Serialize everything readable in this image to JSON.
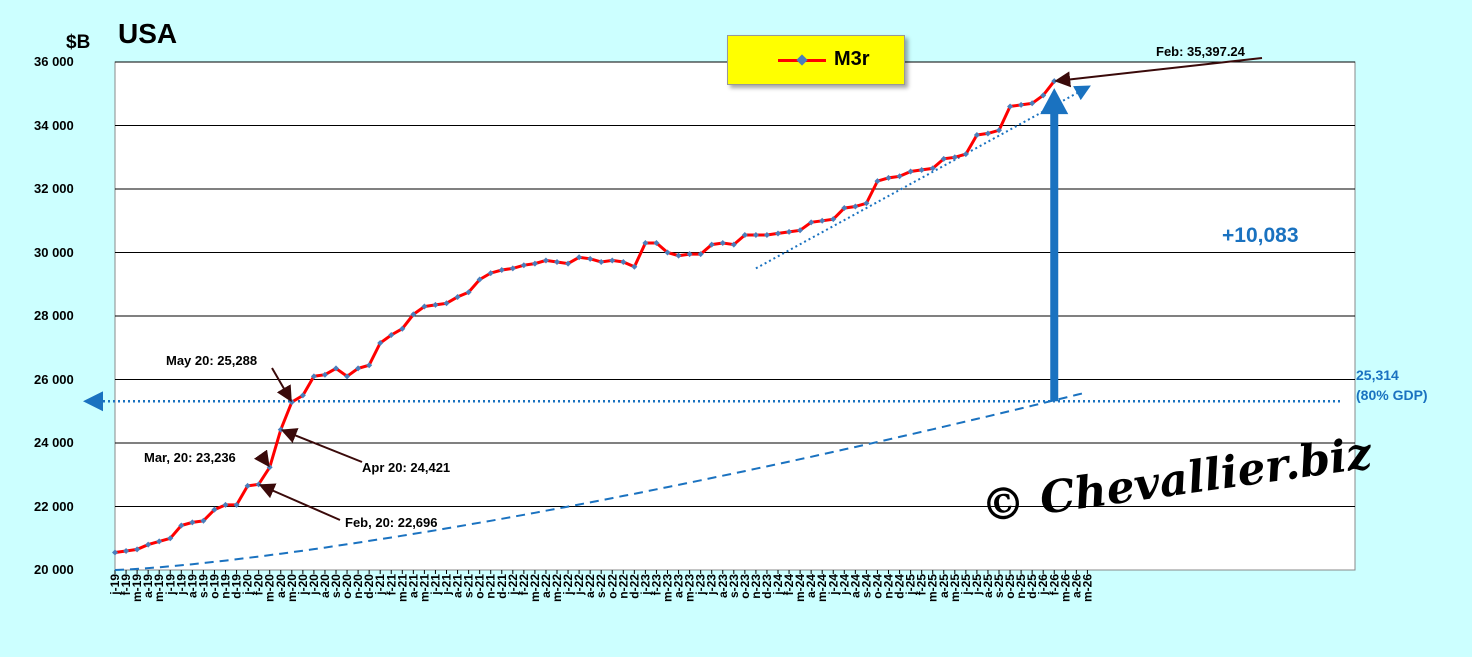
{
  "chart_data": {
    "type": "line",
    "title": "USA",
    "ylabel": "$B",
    "ylim": [
      20000,
      36000
    ],
    "y_ticks": [
      "20 000",
      "22 000",
      "24 000",
      "26 000",
      "28 000",
      "30 000",
      "32 000",
      "34 000",
      "36 000"
    ],
    "grid": true,
    "legend_position": "top-center",
    "x_tick_labels": [
      "j-19",
      "f-19",
      "m-19",
      "a-19",
      "m-19",
      "j-19",
      "j-19",
      "a-19",
      "s-19",
      "o-19",
      "n-19",
      "d-19",
      "j-20",
      "f-20",
      "m-20",
      "a-20",
      "m-20",
      "j-20",
      "j-20",
      "a-20",
      "s-20",
      "o-20",
      "n-20",
      "d-20",
      "j-21",
      "f-21",
      "m-21",
      "a-21",
      "m-21",
      "j-21",
      "j-21",
      "a-21",
      "s-21",
      "o-21",
      "n-21",
      "d-21",
      "j-22",
      "f-22",
      "m-22",
      "a-22",
      "m-22",
      "j-22",
      "j-22",
      "a-22",
      "s-22",
      "o-22",
      "n-22",
      "d-22",
      "j-23",
      "f-23",
      "m-23",
      "a-23",
      "m-23",
      "j-23",
      "j-23",
      "a-23",
      "s-23",
      "o-23",
      "n-23",
      "d-23",
      "j-24",
      "f-24",
      "m-24",
      "a-24",
      "m-24",
      "j-24",
      "j-24",
      "a-24",
      "s-24",
      "o-24",
      "n-24",
      "d-24",
      "j-25",
      "f-25",
      "m-25",
      "a-25",
      "m-25",
      "j-25",
      "j-25",
      "a-25",
      "s-25",
      "o-25",
      "n-25",
      "d-25",
      "j-26",
      "f-26",
      "m-26",
      "a-26",
      "m-26"
    ],
    "series": [
      {
        "name": "M3r",
        "color": "#ff0000",
        "marker_color": "#4a7ebb",
        "values": [
          20550,
          20600,
          20650,
          20800,
          20900,
          21000,
          21400,
          21500,
          21550,
          21900,
          22050,
          22050,
          22650,
          22696,
          23236,
          24421,
          25288,
          25500,
          26100,
          26150,
          26350,
          26100,
          26350,
          26450,
          27150,
          27400,
          27600,
          28050,
          28300,
          28350,
          28400,
          28600,
          28750,
          29150,
          29350,
          29450,
          29500,
          29600,
          29650,
          29750,
          29700,
          29650,
          29850,
          29800,
          29700,
          29750,
          29700,
          29550,
          30300,
          30300,
          30000,
          29900,
          29950,
          29950,
          30250,
          30300,
          30250,
          30550,
          30550,
          30550,
          30600,
          30650,
          30700,
          30950,
          31000,
          31050,
          31400,
          31450,
          31550,
          32250,
          32350,
          32400,
          32550,
          32600,
          32650,
          32950,
          33000,
          33100,
          33700,
          33750,
          33850,
          34600,
          34650,
          34700,
          34950,
          35397.24
        ]
      }
    ],
    "trend_line": {
      "start_index": 58,
      "start_value": 29500,
      "end_index": 88,
      "end_value": 35200,
      "color": "#1a72c0"
    },
    "gdp_line": {
      "start_value": 20000,
      "end_value": 25600,
      "color": "#1a72c0"
    },
    "reference_line": {
      "value": 25314,
      "label_value": "25,314",
      "label_note": "(80% GDP)",
      "color": "#1a72c0"
    },
    "change_label": "+10,083",
    "annotations": [
      {
        "text": "Feb: 35,397.24"
      },
      {
        "text": "May 20: 25,288"
      },
      {
        "text": "Mar, 20: 23,236"
      },
      {
        "text": "Apr 20: 24,421"
      },
      {
        "text": "Feb, 20: 22,696"
      }
    ],
    "watermark": "© Chevallier.biz"
  }
}
